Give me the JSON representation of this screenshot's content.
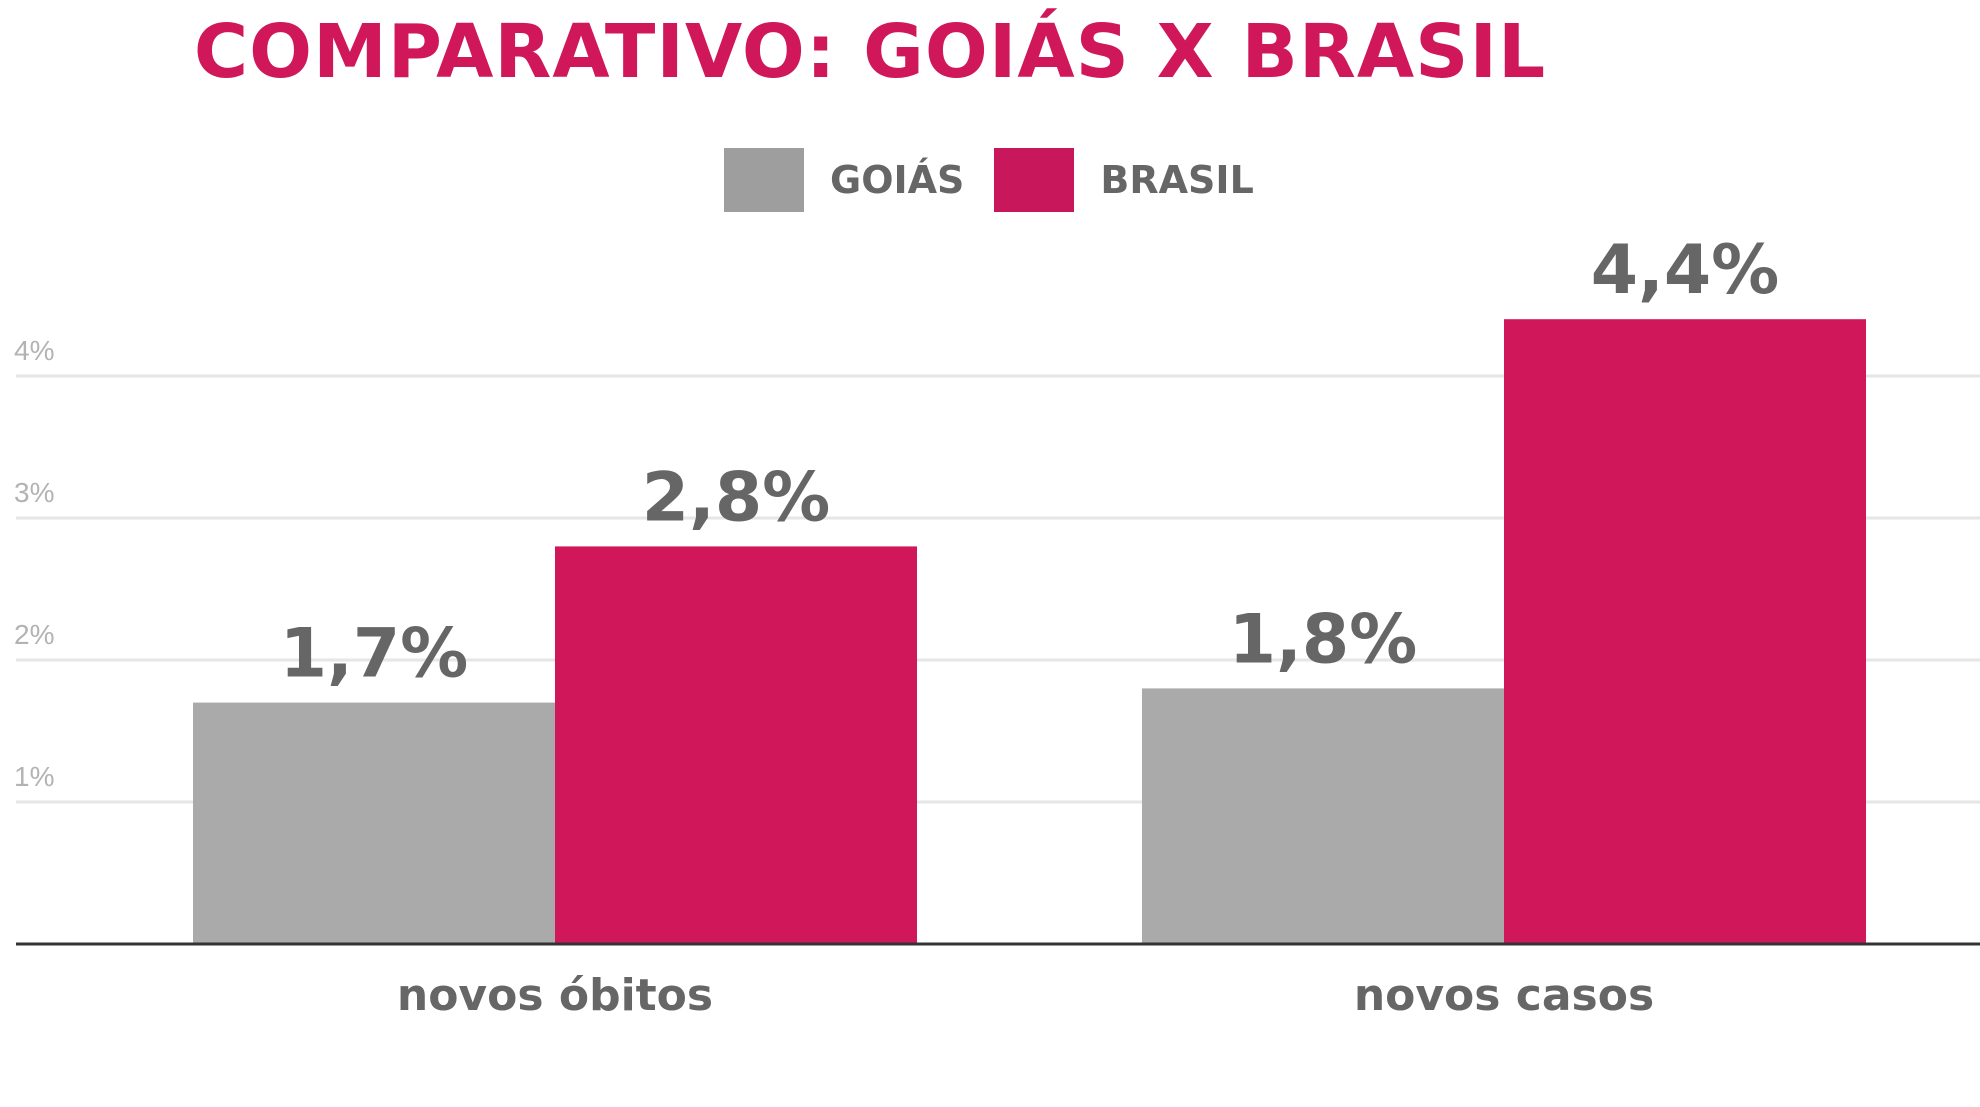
{
  "chart_data": {
    "type": "bar",
    "title": "COMPARATIVO: GOIÁS X BRASIL",
    "categories": [
      "novos óbitos",
      "novos casos"
    ],
    "series": [
      {
        "name": "GOIÁS",
        "values": [
          1.7,
          1.8
        ],
        "labels": [
          "1,7%",
          "1,8%"
        ],
        "color": "#aaaaaa"
      },
      {
        "name": "BRASIL",
        "values": [
          2.8,
          4.4
        ],
        "labels": [
          "2,8%",
          "4,4%"
        ],
        "color": "#d0175a"
      }
    ],
    "yticks": [
      1,
      2,
      3,
      4
    ],
    "ytick_labels": [
      "1%",
      "2%",
      "3%",
      "4%"
    ],
    "ylim": [
      0,
      4.4
    ],
    "xlabel": "",
    "ylabel": "",
    "grid": true,
    "legend_position": "top-center"
  },
  "colors": {
    "title": "#d0175a",
    "text": "#666666",
    "grid": "#e6e6e6",
    "axis": "#333333",
    "tick": "#b3b3b3"
  }
}
